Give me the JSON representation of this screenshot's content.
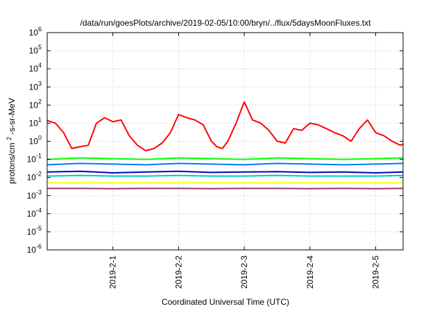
{
  "chart_data": {
    "type": "line",
    "title": "/data/run/goesPlots/archive/2019-02-05/10:00/bryn/../flux/5daysMoonFluxes.txt",
    "xlabel": "Coordinated Universal Time (UTC)",
    "ylabel": "protons/cm²-s-sr-MeV",
    "ylabel_parts": {
      "a": "protons/cm",
      "sup": "2",
      "b": "-s-sr-MeV"
    },
    "y_scale": "log",
    "ylim": [
      1e-06,
      1000000.0
    ],
    "y_ticks": [
      {
        "value": 1e-06,
        "base": "10",
        "exp": "-6"
      },
      {
        "value": 1e-05,
        "base": "10",
        "exp": "-5"
      },
      {
        "value": 0.0001,
        "base": "10",
        "exp": "-4"
      },
      {
        "value": 0.001,
        "base": "10",
        "exp": "-3"
      },
      {
        "value": 0.01,
        "base": "10",
        "exp": "-2"
      },
      {
        "value": 0.1,
        "base": "10",
        "exp": "-1"
      },
      {
        "value": 1,
        "base": "10",
        "exp": "0"
      },
      {
        "value": 10,
        "base": "10",
        "exp": "1"
      },
      {
        "value": 100,
        "base": "10",
        "exp": "2"
      },
      {
        "value": 1000,
        "base": "10",
        "exp": "3"
      },
      {
        "value": 10000,
        "base": "10",
        "exp": "4"
      },
      {
        "value": 100000,
        "base": "10",
        "exp": "5"
      },
      {
        "value": 1000000,
        "base": "10",
        "exp": "6"
      }
    ],
    "xlim": [
      "2019-01-31T00:00",
      "2019-02-05T10:00"
    ],
    "x_ticks": [
      {
        "value": "2019-02-01T00:00",
        "label": "2019-2-1"
      },
      {
        "value": "2019-02-02T00:00",
        "label": "2019-2-2"
      },
      {
        "value": "2019-02-03T00:00",
        "label": "2019-2-3"
      },
      {
        "value": "2019-02-04T00:00",
        "label": "2019-2-4"
      },
      {
        "value": "2019-02-05T00:00",
        "label": "2019-2-5"
      }
    ],
    "grid": true,
    "series": [
      {
        "color": "#ff0000",
        "x": [
          "2019-01-31T00:00",
          "2019-01-31T03:00",
          "2019-01-31T06:00",
          "2019-01-31T09:00",
          "2019-01-31T12:00",
          "2019-01-31T15:00",
          "2019-01-31T18:00",
          "2019-01-31T21:00",
          "2019-02-01T00:00",
          "2019-02-01T03:00",
          "2019-02-01T06:00",
          "2019-02-01T09:00",
          "2019-02-01T12:00",
          "2019-02-01T15:00",
          "2019-02-01T18:00",
          "2019-02-01T21:00",
          "2019-02-02T00:00",
          "2019-02-02T03:00",
          "2019-02-02T06:00",
          "2019-02-02T09:00",
          "2019-02-02T12:00",
          "2019-02-02T14:00",
          "2019-02-02T16:00",
          "2019-02-02T18:00",
          "2019-02-02T21:00",
          "2019-02-03T00:00",
          "2019-02-03T03:00",
          "2019-02-03T06:00",
          "2019-02-03T09:00",
          "2019-02-03T12:00",
          "2019-02-03T15:00",
          "2019-02-03T18:00",
          "2019-02-03T21:00",
          "2019-02-04T00:00",
          "2019-02-04T03:00",
          "2019-02-04T06:00",
          "2019-02-04T09:00",
          "2019-02-04T12:00",
          "2019-02-04T15:00",
          "2019-02-04T18:00",
          "2019-02-04T21:00",
          "2019-02-05T00:00",
          "2019-02-05T03:00",
          "2019-02-05T06:00",
          "2019-02-05T09:00",
          "2019-02-05T10:00"
        ],
        "values": [
          14,
          10,
          3,
          0.4,
          0.5,
          0.6,
          10,
          20,
          12,
          15,
          2,
          0.6,
          0.3,
          0.4,
          0.8,
          3,
          30,
          20,
          15,
          8,
          1,
          0.5,
          0.4,
          1,
          10,
          150,
          15,
          10,
          4,
          1,
          0.8,
          5,
          4,
          10,
          8,
          5,
          3,
          2,
          1,
          5,
          15,
          3,
          2,
          1,
          0.6,
          0.7
        ]
      },
      {
        "color": "#00ff00",
        "x": [
          "2019-01-31T00:00",
          "2019-01-31T12:00",
          "2019-02-01T00:00",
          "2019-02-01T12:00",
          "2019-02-02T00:00",
          "2019-02-02T12:00",
          "2019-02-03T00:00",
          "2019-02-03T12:00",
          "2019-02-04T00:00",
          "2019-02-04T12:00",
          "2019-02-05T00:00",
          "2019-02-05T10:00"
        ],
        "values": [
          0.1,
          0.12,
          0.11,
          0.1,
          0.12,
          0.11,
          0.1,
          0.12,
          0.11,
          0.1,
          0.11,
          0.12
        ]
      },
      {
        "color": "#0077ff",
        "x": [
          "2019-01-31T00:00",
          "2019-01-31T12:00",
          "2019-02-01T00:00",
          "2019-02-01T12:00",
          "2019-02-02T00:00",
          "2019-02-02T12:00",
          "2019-02-03T00:00",
          "2019-02-03T12:00",
          "2019-02-04T00:00",
          "2019-02-04T12:00",
          "2019-02-05T00:00",
          "2019-02-05T10:00"
        ],
        "values": [
          0.05,
          0.06,
          0.055,
          0.05,
          0.06,
          0.055,
          0.05,
          0.06,
          0.055,
          0.05,
          0.055,
          0.06
        ]
      },
      {
        "color": "#0000cc",
        "x": [
          "2019-01-31T00:00",
          "2019-01-31T12:00",
          "2019-02-01T00:00",
          "2019-02-01T12:00",
          "2019-02-02T00:00",
          "2019-02-02T12:00",
          "2019-02-03T00:00",
          "2019-02-03T12:00",
          "2019-02-04T00:00",
          "2019-02-04T12:00",
          "2019-02-05T00:00",
          "2019-02-05T10:00"
        ],
        "values": [
          0.02,
          0.022,
          0.018,
          0.02,
          0.022,
          0.019,
          0.02,
          0.021,
          0.019,
          0.02,
          0.018,
          0.02
        ]
      },
      {
        "color": "#00cccc",
        "x": [
          "2019-01-31T00:00",
          "2019-01-31T12:00",
          "2019-02-01T00:00",
          "2019-02-01T12:00",
          "2019-02-02T00:00",
          "2019-02-02T12:00",
          "2019-02-03T00:00",
          "2019-02-03T12:00",
          "2019-02-04T00:00",
          "2019-02-04T12:00",
          "2019-02-05T00:00",
          "2019-02-05T10:00"
        ],
        "values": [
          0.012,
          0.013,
          0.012,
          0.012,
          0.013,
          0.012,
          0.012,
          0.013,
          0.012,
          0.012,
          0.012,
          0.013
        ]
      },
      {
        "color": "#ffff00",
        "x": [
          "2019-01-31T00:00",
          "2019-01-31T12:00",
          "2019-02-01T00:00",
          "2019-02-01T12:00",
          "2019-02-02T00:00",
          "2019-02-02T12:00",
          "2019-02-03T00:00",
          "2019-02-03T12:00",
          "2019-02-04T00:00",
          "2019-02-04T12:00",
          "2019-02-05T00:00",
          "2019-02-05T10:00"
        ],
        "values": [
          0.005,
          0.005,
          0.005,
          0.005,
          0.005,
          0.005,
          0.005,
          0.005,
          0.005,
          0.005,
          0.005,
          0.005
        ]
      },
      {
        "color": "#993366",
        "x": [
          "2019-01-31T00:00",
          "2019-01-31T12:00",
          "2019-02-01T00:00",
          "2019-02-01T12:00",
          "2019-02-02T00:00",
          "2019-02-02T12:00",
          "2019-02-03T00:00",
          "2019-02-03T12:00",
          "2019-02-04T00:00",
          "2019-02-04T12:00",
          "2019-02-05T00:00",
          "2019-02-05T10:00"
        ],
        "values": [
          0.0025,
          0.0025,
          0.0024,
          0.0025,
          0.0025,
          0.0024,
          0.0025,
          0.0025,
          0.0024,
          0.0025,
          0.0024,
          0.0025
        ]
      }
    ]
  }
}
